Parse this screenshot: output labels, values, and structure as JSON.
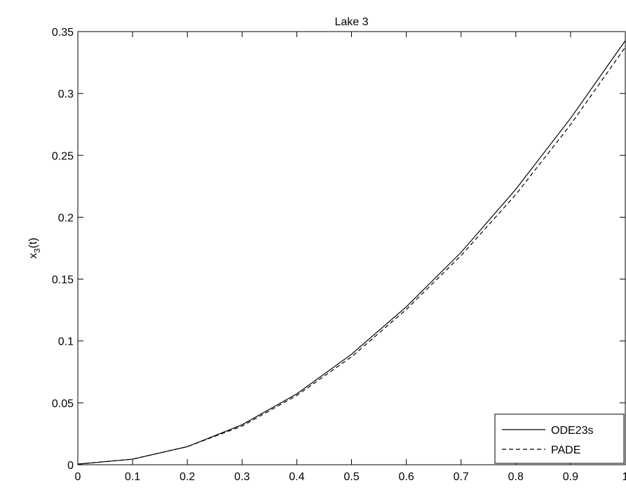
{
  "chart_data": {
    "type": "line",
    "title": "Lake 3",
    "xlabel": "",
    "ylabel": "x",
    "ylabel_subscript": "3",
    "ylabel_suffix": "(t)",
    "xlim": [
      0,
      1
    ],
    "ylim": [
      0,
      0.35
    ],
    "xticks": [
      0,
      0.1,
      0.2,
      0.3,
      0.4,
      0.5,
      0.6,
      0.7,
      0.8,
      0.9,
      1
    ],
    "xtick_labels": [
      "0",
      "0.1",
      "0.2",
      "0.3",
      "0.4",
      "0.5",
      "0.6",
      "0.7",
      "0.8",
      "0.9",
      "1"
    ],
    "yticks": [
      0,
      0.05,
      0.1,
      0.15,
      0.2,
      0.25,
      0.3,
      0.35
    ],
    "ytick_labels": [
      "0",
      "0.05",
      "0.1",
      "0.15",
      "0.2",
      "0.25",
      "0.3",
      "0.35"
    ],
    "grid": false,
    "legend_position": "bottom-right",
    "series": [
      {
        "name": "ODE23s",
        "style": "solid",
        "color": "#000000",
        "x": [
          0,
          0.1,
          0.2,
          0.3,
          0.4,
          0.5,
          0.6,
          0.7,
          0.8,
          0.9,
          1.0
        ],
        "y": [
          0.0005,
          0.0045,
          0.0146,
          0.0323,
          0.0573,
          0.0893,
          0.1276,
          0.1716,
          0.2226,
          0.2799,
          0.3427
        ]
      },
      {
        "name": "PADE",
        "style": "dashed",
        "color": "#000000",
        "x": [
          0,
          0.1,
          0.2,
          0.3,
          0.4,
          0.5,
          0.6,
          0.7,
          0.8,
          0.9,
          1.0
        ],
        "y": [
          0.0005,
          0.0045,
          0.0146,
          0.0312,
          0.056,
          0.0872,
          0.1255,
          0.169,
          0.2183,
          0.2748,
          0.3374
        ]
      }
    ]
  }
}
